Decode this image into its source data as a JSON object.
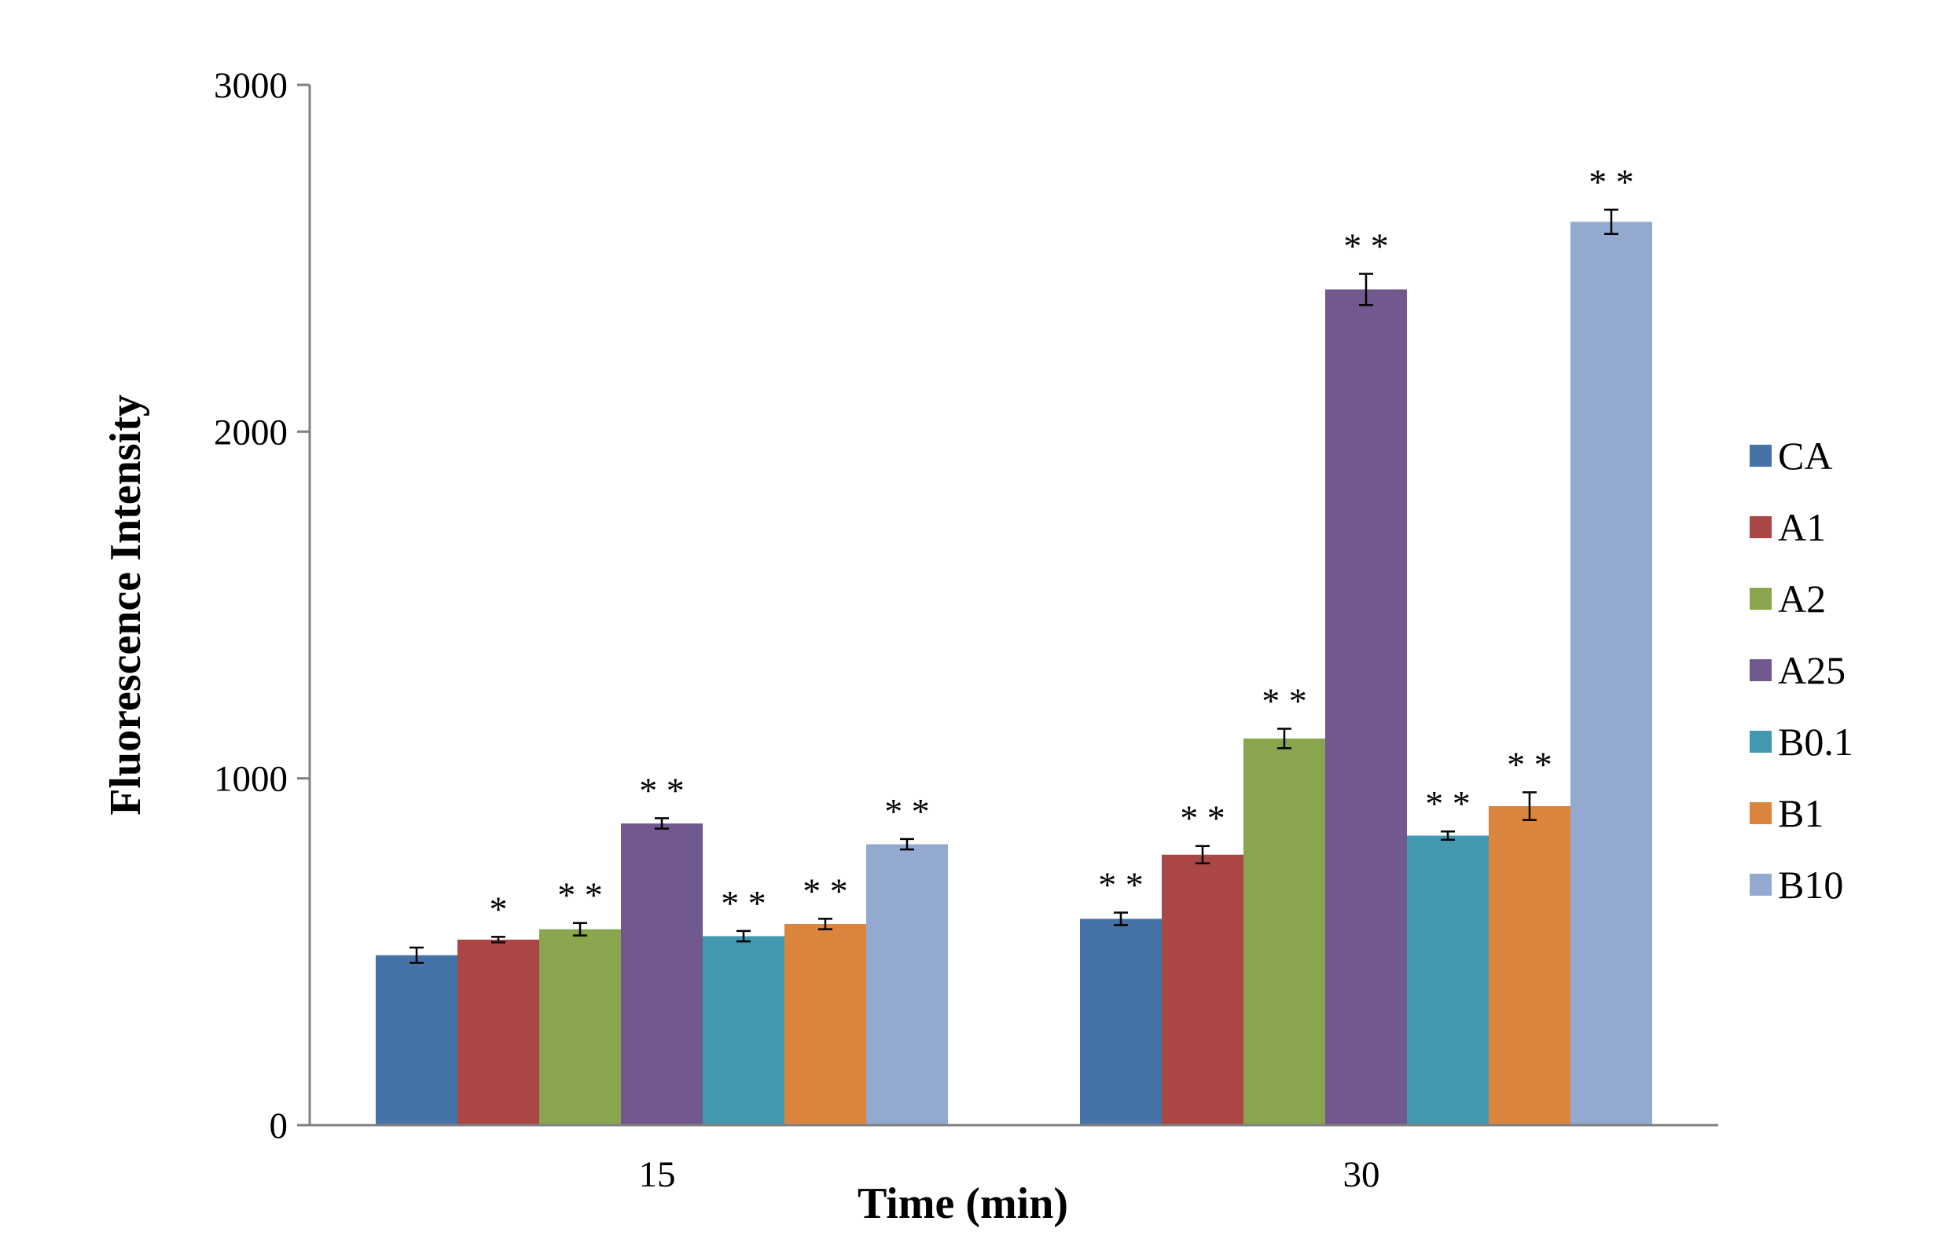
{
  "chart_data": {
    "type": "bar",
    "title": "",
    "xlabel": "Time (min)",
    "ylabel": "Fluorescence Intensity",
    "ylim": [
      0,
      3000
    ],
    "yticks": [
      0,
      1000,
      2000,
      3000
    ],
    "grid": false,
    "legend_position": "right",
    "categories": [
      "15",
      "30"
    ],
    "series": [
      {
        "name": "CA",
        "color": "#4572A7",
        "values": [
          490,
          595
        ],
        "errors": [
          22,
          18
        ],
        "significance": [
          "",
          "**"
        ]
      },
      {
        "name": "A1",
        "color": "#AA4643",
        "values": [
          535,
          780
        ],
        "errors": [
          8,
          25
        ],
        "significance": [
          "*",
          "**"
        ]
      },
      {
        "name": "A2",
        "color": "#89A54E",
        "values": [
          565,
          1115
        ],
        "errors": [
          18,
          28
        ],
        "significance": [
          "**",
          "**"
        ]
      },
      {
        "name": "A25",
        "color": "#71588F",
        "values": [
          870,
          2410
        ],
        "errors": [
          15,
          45
        ],
        "significance": [
          "**",
          "**"
        ]
      },
      {
        "name": "B0.1",
        "color": "#4198AF",
        "values": [
          545,
          835
        ],
        "errors": [
          15,
          12
        ],
        "significance": [
          "**",
          "**"
        ]
      },
      {
        "name": "B1",
        "color": "#DB843D",
        "values": [
          580,
          920
        ],
        "errors": [
          15,
          40
        ],
        "significance": [
          "**",
          "**"
        ]
      },
      {
        "name": "B10",
        "color": "#93A9CF",
        "values": [
          810,
          2605
        ],
        "errors": [
          15,
          35
        ],
        "significance": [
          "**",
          "**"
        ]
      }
    ]
  }
}
